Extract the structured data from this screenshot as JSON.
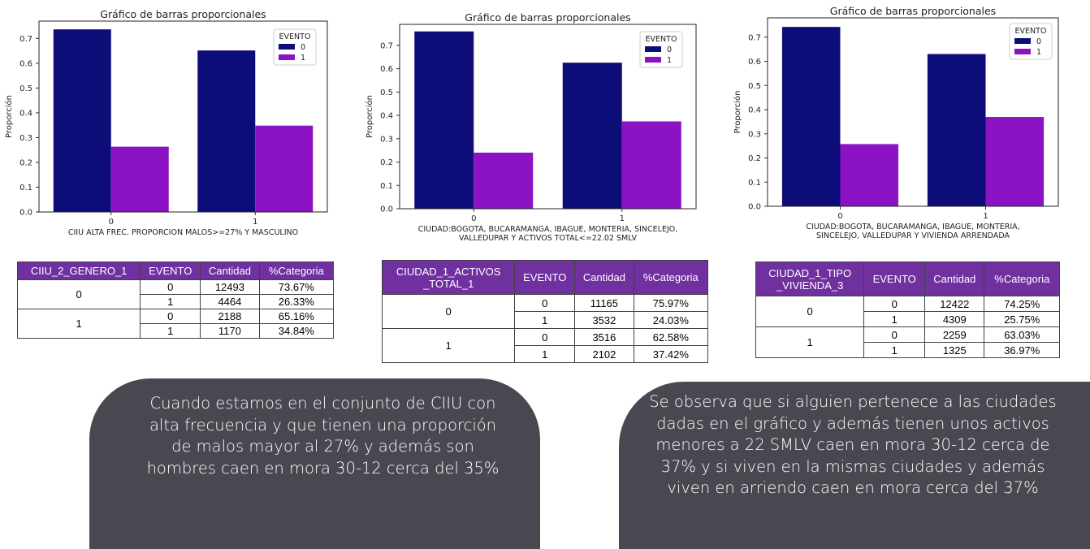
{
  "chart_data": [
    {
      "type": "bar",
      "title": "Gráfico de barras proporcionales",
      "xlabel": "CIIU ALTA FREC. PROPORCION MALOS>=27% Y MASCULINO",
      "ylabel": "Proporción",
      "categories": [
        "0",
        "1"
      ],
      "ylim": [
        0,
        0.77
      ],
      "yticks": [
        "0.0",
        "0.1",
        "0.2",
        "0.3",
        "0.4",
        "0.5",
        "0.6",
        "0.7"
      ],
      "legend_title": "EVENTO",
      "legend_position": "top-right",
      "series": [
        {
          "name": "0",
          "values": [
            0.7367,
            0.6516
          ],
          "color": "#0d0d7a"
        },
        {
          "name": "1",
          "values": [
            0.2633,
            0.3484
          ],
          "color": "#8b13c4"
        }
      ]
    },
    {
      "type": "bar",
      "title": "Gráfico de barras proporcionales",
      "xlabel": "CIUDAD:BOGOTA, BUCARAMANGA, IBAGUE, MONTERIA, SINCELEJO,\nVALLEDUPAR Y ACTIVOS TOTAL<=22.02 SMLV",
      "ylabel": "Proporción",
      "categories": [
        "0",
        "1"
      ],
      "ylim": [
        0,
        0.79
      ],
      "yticks": [
        "0.0",
        "0.1",
        "0.2",
        "0.3",
        "0.4",
        "0.5",
        "0.6",
        "0.7"
      ],
      "legend_title": "EVENTO",
      "legend_position": "top-right",
      "series": [
        {
          "name": "0",
          "values": [
            0.7597,
            0.6258
          ],
          "color": "#0d0d7a"
        },
        {
          "name": "1",
          "values": [
            0.2403,
            0.3742
          ],
          "color": "#8b13c4"
        }
      ]
    },
    {
      "type": "bar",
      "title": "Gráfico de barras proporcionales",
      "xlabel": "CIUDAD:BOGOTA, BUCARAMANGA, IBAGUE, MONTERIA,\nSINCELEJO, VALLEDUPAR Y VIVIENDA ARRENDADA",
      "ylabel": "Proporción",
      "categories": [
        "0",
        "1"
      ],
      "ylim": [
        0,
        0.78
      ],
      "yticks": [
        "0.0",
        "0.1",
        "0.2",
        "0.3",
        "0.4",
        "0.5",
        "0.6",
        "0.7"
      ],
      "legend_title": "EVENTO",
      "legend_position": "top-right",
      "series": [
        {
          "name": "0",
          "values": [
            0.7425,
            0.6303
          ],
          "color": "#0d0d7a"
        },
        {
          "name": "1",
          "values": [
            0.2575,
            0.3697
          ],
          "color": "#8b13c4"
        }
      ]
    }
  ],
  "tables": [
    {
      "headers": [
        "CIIU_2_GENERO_1",
        "EVENTO",
        "Cantidad",
        "%Categoria"
      ],
      "groups": [
        {
          "label": "0",
          "rows": [
            [
              "0",
              "12493",
              "73.67%"
            ],
            [
              "1",
              "4464",
              "26.33%"
            ]
          ]
        },
        {
          "label": "1",
          "rows": [
            [
              "0",
              "2188",
              "65.16%"
            ],
            [
              "1",
              "1170",
              "34.84%"
            ]
          ]
        }
      ]
    },
    {
      "headers": [
        "CIUDAD_1_ACTIVOS\n_TOTAL_1",
        "EVENTO",
        "Cantidad",
        "%Categoria"
      ],
      "groups": [
        {
          "label": "0",
          "rows": [
            [
              "0",
              "11165",
              "75.97%"
            ],
            [
              "1",
              "3532",
              "24.03%"
            ]
          ]
        },
        {
          "label": "1",
          "rows": [
            [
              "0",
              "3516",
              "62.58%"
            ],
            [
              "1",
              "2102",
              "37.42%"
            ]
          ]
        }
      ]
    },
    {
      "headers": [
        "CIUDAD_1_TIPO\n_VIVIENDA_3",
        "EVENTO",
        "Cantidad",
        "%Categoria"
      ],
      "groups": [
        {
          "label": "0",
          "rows": [
            [
              "0",
              "12422",
              "74.25%"
            ],
            [
              "1",
              "4309",
              "25.75%"
            ]
          ]
        },
        {
          "label": "1",
          "rows": [
            [
              "0",
              "2259",
              "63.03%"
            ],
            [
              "1",
              "1325",
              "36.97%"
            ]
          ]
        }
      ]
    }
  ],
  "callouts": [
    {
      "lines": [
        "Cuando estamos en el conjunto de CIIU con",
        "alta frecuencia y que tienen una proporción",
        "de malos mayor al 27% y además son",
        "hombres caen en mora 30-12 cerca del 35%"
      ]
    },
    {
      "lines": [
        "Se observa que si alguien pertenece a las ciudades",
        "dadas en el gráfico y además tienen unos activos",
        "menores a 22 SMLV caen en mora 30-12 cerca de",
        "37% y si viven en la mismas ciudades y además",
        "viven en arriendo caen en mora cerca del 37%"
      ]
    }
  ],
  "colors": {
    "evento_0": "#0d0d7a",
    "evento_1": "#8b13c4",
    "table_header": "#7030a0",
    "bubble": "#4a4750"
  }
}
